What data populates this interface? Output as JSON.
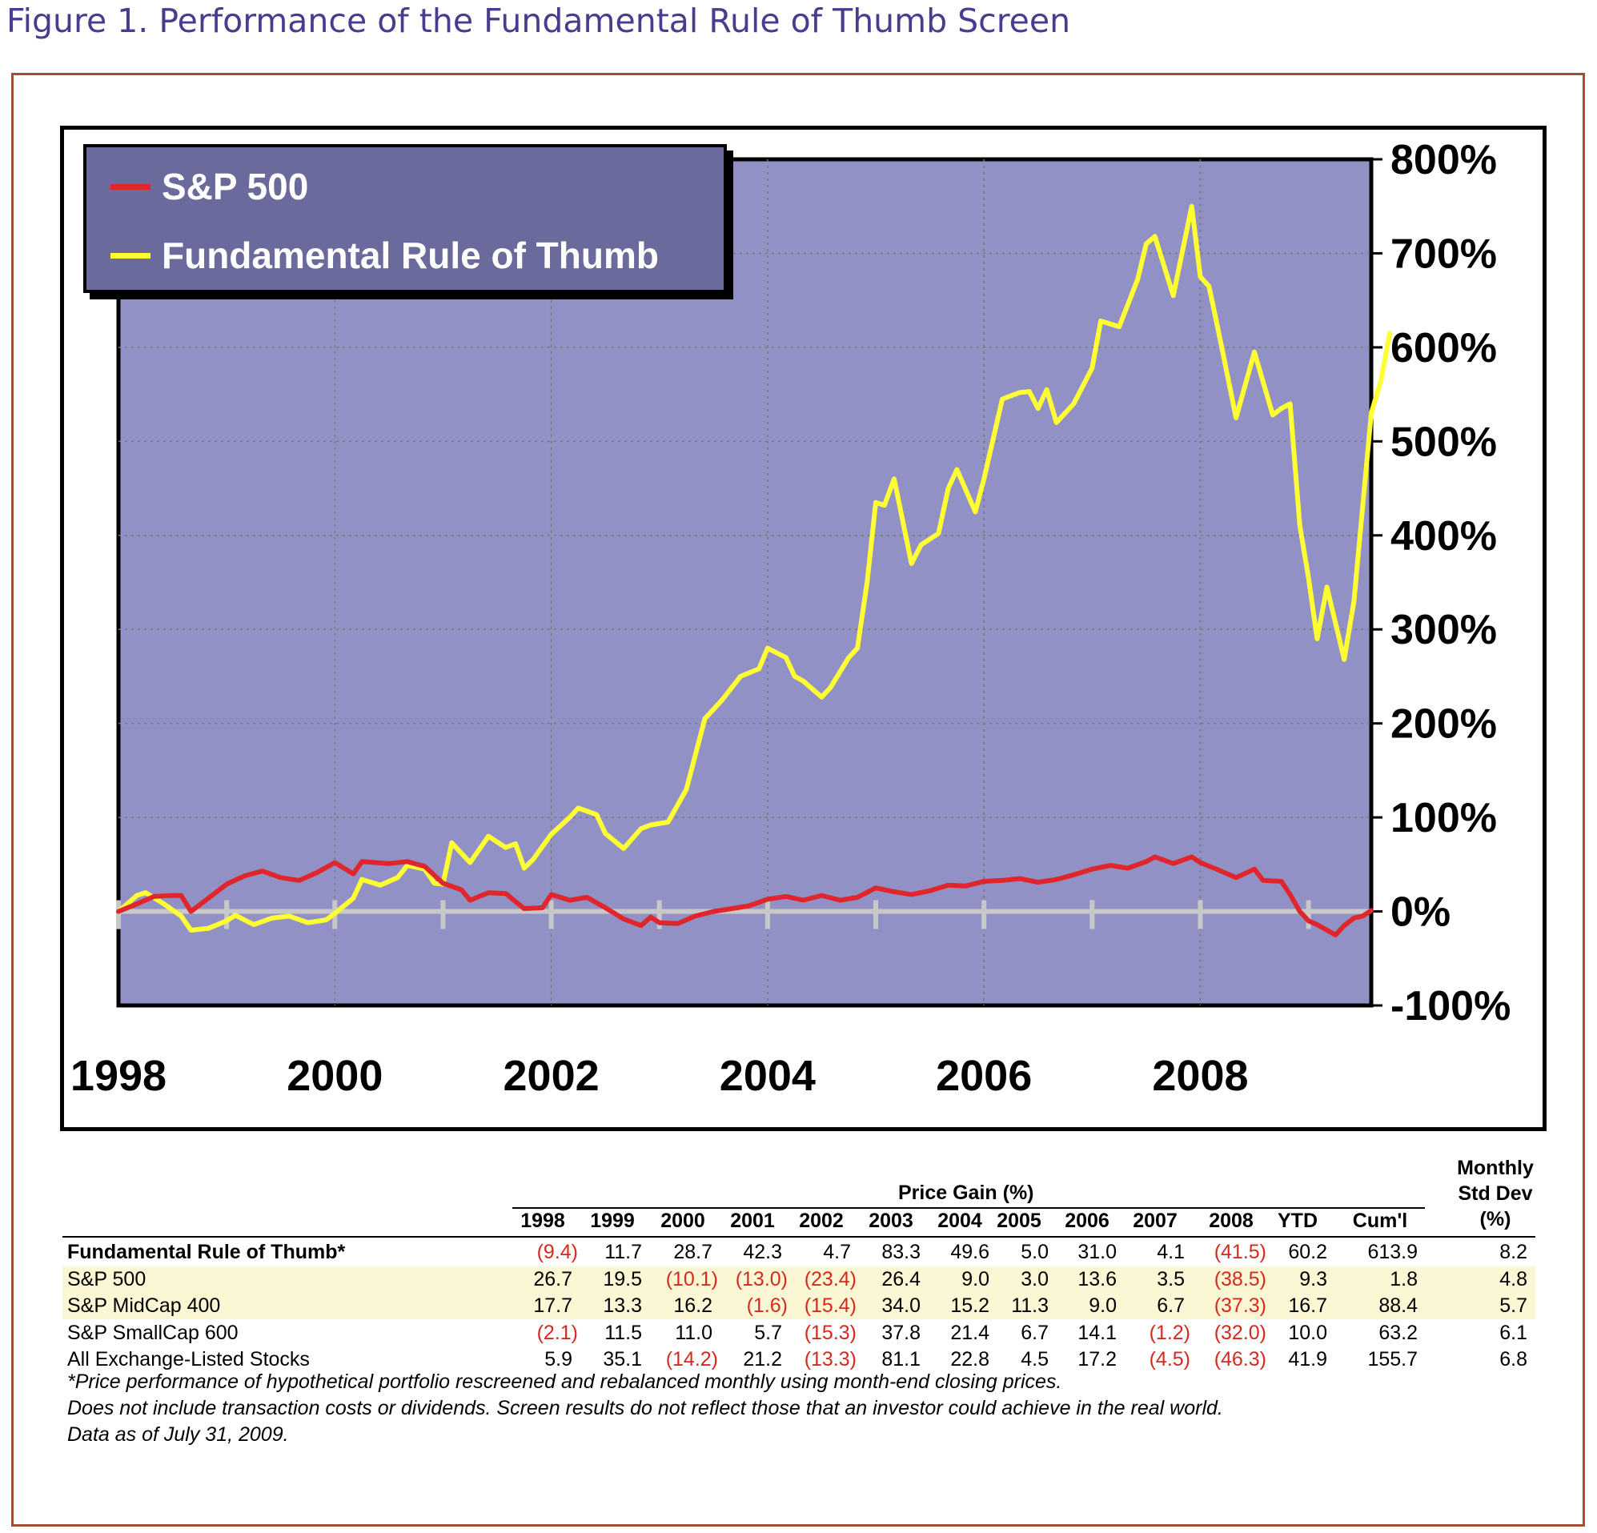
{
  "figure_title": "Figure 1. Performance of the Fundamental Rule of Thumb Screen",
  "colors": {
    "plot_bg": "#9191c6",
    "sp500": "#e0262c",
    "frot": "#ffff33",
    "frame_border": "#a0502e",
    "title": "#4a3b8f",
    "negative_text": "#d42a1e",
    "row_shade": "#fbf6d3"
  },
  "chart_data": {
    "type": "line",
    "legend": [
      "S&P 500",
      "Fundamental Rule of Thumb"
    ],
    "legend_position": "top-left",
    "x_tick_labels": [
      "1998",
      "2000",
      "2002",
      "2004",
      "2006",
      "2008"
    ],
    "y_tick_labels": [
      "800%",
      "700%",
      "600%",
      "500%",
      "400%",
      "300%",
      "200%",
      "100%",
      "0%",
      "-100%"
    ],
    "ylim": [
      -100,
      800
    ],
    "xlim": [
      1998.0,
      2009.58
    ],
    "y_axis_side": "right",
    "grid": "dotted horizontal and vertical",
    "series": [
      {
        "name": "S&P 500",
        "color": "#e0262c",
        "points": [
          [
            1998.0,
            0
          ],
          [
            1998.17,
            8
          ],
          [
            1998.33,
            16
          ],
          [
            1998.5,
            17
          ],
          [
            1998.58,
            17
          ],
          [
            1998.67,
            0
          ],
          [
            1998.83,
            14
          ],
          [
            1999.0,
            29
          ],
          [
            1999.17,
            38
          ],
          [
            1999.33,
            43
          ],
          [
            1999.5,
            36
          ],
          [
            1999.67,
            33
          ],
          [
            1999.83,
            41
          ],
          [
            2000.0,
            52
          ],
          [
            2000.17,
            40
          ],
          [
            2000.25,
            53
          ],
          [
            2000.5,
            51
          ],
          [
            2000.67,
            53
          ],
          [
            2000.83,
            48
          ],
          [
            2001.0,
            30
          ],
          [
            2001.17,
            23
          ],
          [
            2001.25,
            12
          ],
          [
            2001.42,
            20
          ],
          [
            2001.58,
            19
          ],
          [
            2001.75,
            3
          ],
          [
            2001.92,
            4
          ],
          [
            2002.0,
            18
          ],
          [
            2002.17,
            12
          ],
          [
            2002.33,
            15
          ],
          [
            2002.5,
            4
          ],
          [
            2002.67,
            -8
          ],
          [
            2002.83,
            -15
          ],
          [
            2002.92,
            -6
          ],
          [
            2003.0,
            -12
          ],
          [
            2003.17,
            -13
          ],
          [
            2003.33,
            -5
          ],
          [
            2003.5,
            0
          ],
          [
            2003.67,
            3
          ],
          [
            2003.83,
            6
          ],
          [
            2004.0,
            13
          ],
          [
            2004.17,
            16
          ],
          [
            2004.33,
            12
          ],
          [
            2004.5,
            17
          ],
          [
            2004.67,
            12
          ],
          [
            2004.83,
            15
          ],
          [
            2005.0,
            25
          ],
          [
            2005.17,
            21
          ],
          [
            2005.33,
            18
          ],
          [
            2005.5,
            22
          ],
          [
            2005.67,
            28
          ],
          [
            2005.83,
            27
          ],
          [
            2006.0,
            32
          ],
          [
            2006.17,
            33
          ],
          [
            2006.33,
            35
          ],
          [
            2006.5,
            31
          ],
          [
            2006.67,
            34
          ],
          [
            2006.83,
            39
          ],
          [
            2007.0,
            45
          ],
          [
            2007.17,
            49
          ],
          [
            2007.33,
            46
          ],
          [
            2007.5,
            53
          ],
          [
            2007.58,
            58
          ],
          [
            2007.75,
            51
          ],
          [
            2007.92,
            58
          ],
          [
            2008.0,
            52
          ],
          [
            2008.17,
            44
          ],
          [
            2008.33,
            36
          ],
          [
            2008.5,
            45
          ],
          [
            2008.58,
            33
          ],
          [
            2008.75,
            32
          ],
          [
            2008.83,
            18
          ],
          [
            2008.92,
            0
          ],
          [
            2009.0,
            -10
          ],
          [
            2009.08,
            -14
          ],
          [
            2009.17,
            -20
          ],
          [
            2009.25,
            -25
          ],
          [
            2009.33,
            -15
          ],
          [
            2009.42,
            -7
          ],
          [
            2009.5,
            -5
          ],
          [
            2009.58,
            1
          ]
        ]
      },
      {
        "name": "Fundamental Rule of Thumb",
        "color": "#ffff33",
        "points": [
          [
            1998.0,
            0
          ],
          [
            1998.17,
            17
          ],
          [
            1998.25,
            20
          ],
          [
            1998.42,
            8
          ],
          [
            1998.58,
            -5
          ],
          [
            1998.67,
            -20
          ],
          [
            1998.83,
            -18
          ],
          [
            1999.0,
            -10
          ],
          [
            1999.08,
            -4
          ],
          [
            1999.25,
            -14
          ],
          [
            1999.42,
            -7
          ],
          [
            1999.58,
            -5
          ],
          [
            1999.75,
            -12
          ],
          [
            1999.92,
            -9
          ],
          [
            2000.0,
            -2
          ],
          [
            2000.17,
            14
          ],
          [
            2000.25,
            34
          ],
          [
            2000.42,
            28
          ],
          [
            2000.58,
            36
          ],
          [
            2000.67,
            49
          ],
          [
            2000.83,
            45
          ],
          [
            2000.92,
            30
          ],
          [
            2001.0,
            29
          ],
          [
            2001.08,
            73
          ],
          [
            2001.25,
            52
          ],
          [
            2001.33,
            65
          ],
          [
            2001.42,
            80
          ],
          [
            2001.58,
            68
          ],
          [
            2001.67,
            72
          ],
          [
            2001.75,
            46
          ],
          [
            2001.83,
            55
          ],
          [
            2002.0,
            82
          ],
          [
            2002.17,
            100
          ],
          [
            2002.25,
            110
          ],
          [
            2002.42,
            103
          ],
          [
            2002.5,
            83
          ],
          [
            2002.67,
            67
          ],
          [
            2002.83,
            88
          ],
          [
            2002.92,
            92
          ],
          [
            2003.08,
            95
          ],
          [
            2003.25,
            130
          ],
          [
            2003.42,
            205
          ],
          [
            2003.58,
            225
          ],
          [
            2003.75,
            250
          ],
          [
            2003.92,
            258
          ],
          [
            2004.0,
            280
          ],
          [
            2004.17,
            270
          ],
          [
            2004.25,
            250
          ],
          [
            2004.33,
            245
          ],
          [
            2004.5,
            228
          ],
          [
            2004.58,
            238
          ],
          [
            2004.75,
            270
          ],
          [
            2004.83,
            280
          ],
          [
            2004.92,
            350
          ],
          [
            2005.0,
            435
          ],
          [
            2005.08,
            432
          ],
          [
            2005.17,
            460
          ],
          [
            2005.33,
            370
          ],
          [
            2005.42,
            390
          ],
          [
            2005.58,
            402
          ],
          [
            2005.67,
            450
          ],
          [
            2005.75,
            470
          ],
          [
            2005.92,
            425
          ],
          [
            2006.0,
            460
          ],
          [
            2006.17,
            545
          ],
          [
            2006.33,
            552
          ],
          [
            2006.42,
            553
          ],
          [
            2006.5,
            535
          ],
          [
            2006.58,
            555
          ],
          [
            2006.67,
            520
          ],
          [
            2006.83,
            540
          ],
          [
            2007.0,
            578
          ],
          [
            2007.08,
            628
          ],
          [
            2007.25,
            622
          ],
          [
            2007.42,
            672
          ],
          [
            2007.5,
            710
          ],
          [
            2007.58,
            718
          ],
          [
            2007.75,
            655
          ],
          [
            2007.92,
            750
          ],
          [
            2008.0,
            675
          ],
          [
            2008.08,
            665
          ],
          [
            2008.17,
            616
          ],
          [
            2008.33,
            525
          ],
          [
            2008.5,
            595
          ],
          [
            2008.67,
            528
          ],
          [
            2008.75,
            535
          ],
          [
            2008.83,
            540
          ],
          [
            2008.92,
            410
          ],
          [
            2009.0,
            355
          ],
          [
            2009.08,
            290
          ],
          [
            2009.17,
            345
          ],
          [
            2009.33,
            268
          ],
          [
            2009.42,
            330
          ],
          [
            2009.5,
            430
          ],
          [
            2009.58,
            530
          ],
          [
            2009.67,
            565
          ],
          [
            2009.75,
            615
          ]
        ]
      }
    ]
  },
  "table": {
    "group_header": "Price Gain (%)",
    "std_header": [
      "Monthly",
      "Std Dev",
      "(%)"
    ],
    "columns": [
      "1998",
      "1999",
      "2000",
      "2001",
      "2002",
      "2003",
      "2004",
      "2005",
      "2006",
      "2007",
      "2008",
      "YTD",
      "Cum'l"
    ],
    "rows": [
      {
        "label": "Fundamental Rule of Thumb*",
        "bold": true,
        "shaded": false,
        "values": [
          "(9.4)",
          "11.7",
          "28.7",
          "42.3",
          "4.7",
          "83.3",
          "49.6",
          "5.0",
          "31.0",
          "4.1",
          "(41.5)",
          "60.2",
          "613.9"
        ],
        "std": "8.2"
      },
      {
        "label": "S&P 500",
        "bold": false,
        "shaded": true,
        "values": [
          "26.7",
          "19.5",
          "(10.1)",
          "(13.0)",
          "(23.4)",
          "26.4",
          "9.0",
          "3.0",
          "13.6",
          "3.5",
          "(38.5)",
          "9.3",
          "1.8"
        ],
        "std": "4.8"
      },
      {
        "label": "S&P MidCap 400",
        "bold": false,
        "shaded": true,
        "values": [
          "17.7",
          "13.3",
          "16.2",
          "(1.6)",
          "(15.4)",
          "34.0",
          "15.2",
          "11.3",
          "9.0",
          "6.7",
          "(37.3)",
          "16.7",
          "88.4"
        ],
        "std": "5.7"
      },
      {
        "label": "S&P SmallCap 600",
        "bold": false,
        "shaded": false,
        "values": [
          "(2.1)",
          "11.5",
          "11.0",
          "5.7",
          "(15.3)",
          "37.8",
          "21.4",
          "6.7",
          "14.1",
          "(1.2)",
          "(32.0)",
          "10.0",
          "63.2"
        ],
        "std": "6.1"
      },
      {
        "label": "All Exchange-Listed Stocks",
        "bold": false,
        "shaded": false,
        "values": [
          "5.9",
          "35.1",
          "(14.2)",
          "21.2",
          "(13.3)",
          "81.1",
          "22.8",
          "4.5",
          "17.2",
          "(4.5)",
          "(46.3)",
          "41.9",
          "155.7"
        ],
        "std": "6.8"
      }
    ],
    "footnotes": [
      "*Price performance of hypothetical portfolio rescreened and rebalanced monthly using month-end closing prices.",
      "Does not include transaction costs or dividends. Screen results do not reflect those that an investor could achieve in the real world.",
      "Data as of July 31, 2009."
    ]
  }
}
